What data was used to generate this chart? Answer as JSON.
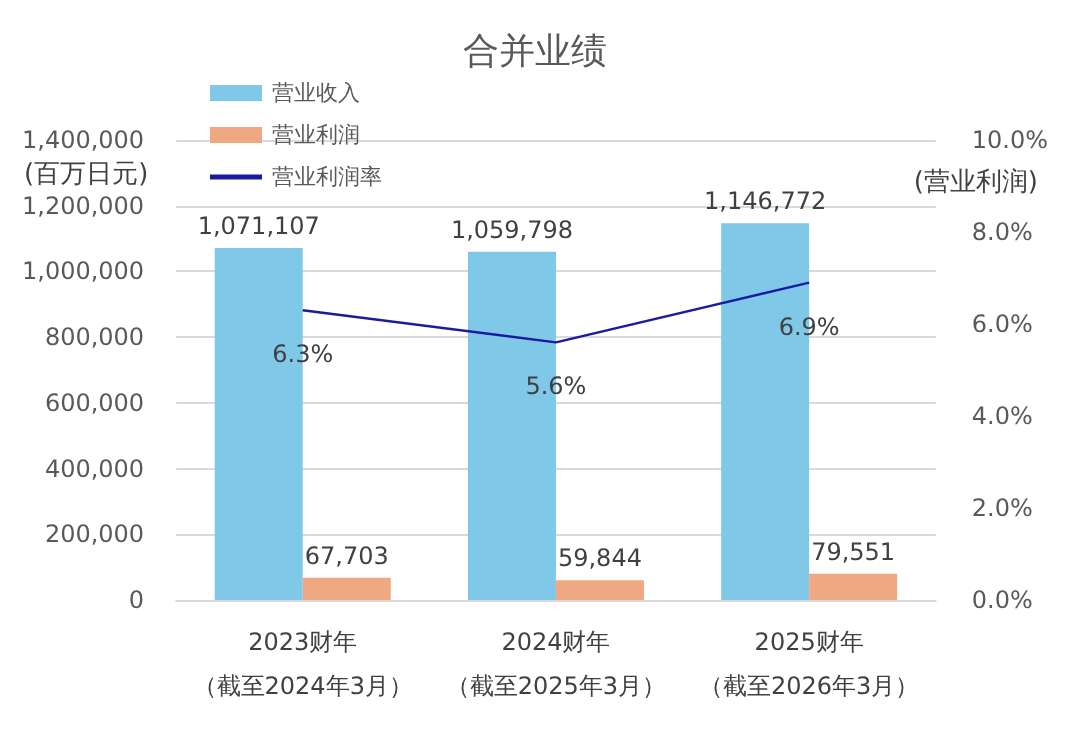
{
  "chart_data": {
    "type": "bar",
    "title": "合并业绩",
    "ylabel": "(百万日元)",
    "y2label": "(营业利润)",
    "categories": [
      "2023财年（截至2024年3月）",
      "2024财年（截至2025年3月）",
      "2025财年（截至2026年3月）"
    ],
    "series": [
      {
        "name": "营业收入",
        "color": "#7fc8e8",
        "values": [
          1071107,
          1059798,
          1146772
        ],
        "value_labels": [
          "1,071,107",
          "1,059,798",
          "1,146,772"
        ]
      },
      {
        "name": "营业利润",
        "color": "#f0a882",
        "values": [
          67703,
          59844,
          79551
        ],
        "value_labels": [
          "67,703",
          "59,844",
          "79,551"
        ]
      },
      {
        "name": "营业利润率",
        "type": "line",
        "axis": "y2",
        "color": "#1a1aa0",
        "values": [
          6.3,
          5.6,
          6.9
        ],
        "value_labels": [
          "6.3%",
          "5.6%",
          "6.9%"
        ]
      }
    ],
    "ylim": [
      0,
      1400000
    ],
    "yticks": [
      {
        "value": 0,
        "label": "0"
      },
      {
        "value": 200000,
        "label": "200,000"
      },
      {
        "value": 400000,
        "label": "400,000"
      },
      {
        "value": 600000,
        "label": "600,000"
      },
      {
        "value": 800000,
        "label": "800,000"
      },
      {
        "value": 1000000,
        "label": "1,000,000"
      },
      {
        "value": 1200000,
        "label": "1,200,000"
      },
      {
        "value": 1400000,
        "label": "1,400,000"
      }
    ],
    "y2lim": [
      0,
      10
    ],
    "y2ticks": [
      {
        "value": 0,
        "label": "0.0%"
      },
      {
        "value": 2,
        "label": "2.0%"
      },
      {
        "value": 4,
        "label": "4.0%"
      },
      {
        "value": 6,
        "label": "6.0%"
      },
      {
        "value": 8,
        "label": "8.0%"
      },
      {
        "value": 10,
        "label": "10.0%"
      }
    ],
    "grid": "y",
    "legend": "top left",
    "marker": "none"
  }
}
